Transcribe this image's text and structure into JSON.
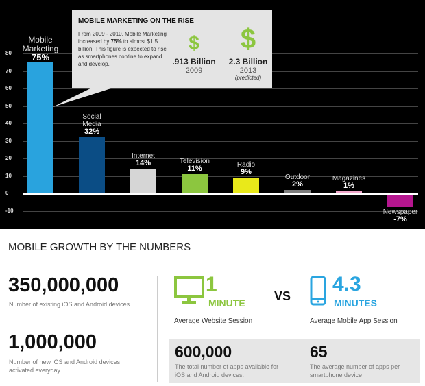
{
  "chart_data": {
    "type": "bar",
    "title": "",
    "categories": [
      "Mobile Marketing",
      "Social Media",
      "Internet",
      "Television",
      "Radio",
      "Outdoor",
      "Magazines",
      "Newspaper"
    ],
    "values": [
      75,
      32,
      14,
      11,
      9,
      2,
      1,
      -7
    ],
    "value_labels": [
      "75%",
      "32%",
      "14%",
      "11%",
      "9%",
      "2%",
      "1%",
      "-7%"
    ],
    "colors": [
      "#29a3de",
      "#0b4d85",
      "#d6d6d6",
      "#8cc63f",
      "#e9e91a",
      "#7d7d7d",
      "#f2a8cc",
      "#b5168f"
    ],
    "yticks": [
      80,
      70,
      60,
      50,
      40,
      30,
      20,
      10,
      0,
      -10
    ],
    "ylim": [
      -10,
      80
    ],
    "xlabel": "",
    "ylabel": "",
    "grid": true
  },
  "callout": {
    "title": "MOBILE MARKETING ON THE RISE",
    "desc_pre": "From 2009 - 2010, Mobile Marketing increased by ",
    "desc_bold": "75%",
    "desc_post": " to almost $1.5 billion. This figure is expected to rise as smartphones contine to expand and develop.",
    "dollar_icon": "$",
    "items": [
      {
        "value": ".913 Billion",
        "year": "2009",
        "note": ""
      },
      {
        "value": "2.3 Billion",
        "year": "2013",
        "note": "(predicted)"
      }
    ]
  },
  "stats": {
    "heading": "MOBILE GROWTH BY THE NUMBERS",
    "devices": {
      "value": "350,000,000",
      "label": "Number of existing iOS and Android devices"
    },
    "activated": {
      "value": "1,000,000",
      "label": "Number of new iOS and Android devices activated everyday"
    },
    "website": {
      "value": "1",
      "unit": "MINUTE",
      "label": "Average Website Session"
    },
    "vs": "VS",
    "app": {
      "value": "4.3",
      "unit": "MINUTES",
      "label": "Average Mobile App Session"
    },
    "apps_total": {
      "value": "600,000",
      "label": "The total number of apps available for iOS and Android devices."
    },
    "apps_avg": {
      "value": "65",
      "label": "The average number of apps per smartphone device"
    },
    "colors": {
      "green": "#8cc63f",
      "blue": "#2aa5e0"
    }
  }
}
